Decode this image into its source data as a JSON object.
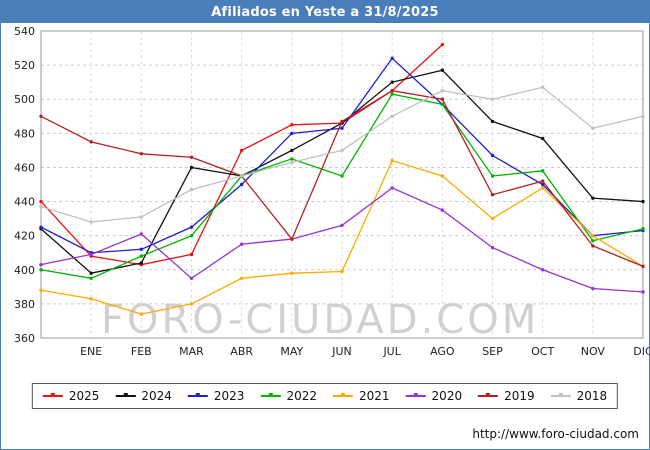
{
  "title": "Afiliados en Yeste a 31/8/2025",
  "watermark": "FORO-CIUDAD.COM",
  "footer_url": "http://www.foro-ciudad.com",
  "colors": {
    "title_bar": "#4a7ebb",
    "title_text": "#ffffff",
    "grid": "#cccccc",
    "axis_border": "#999999",
    "watermark": "#aaaaaa"
  },
  "chart_data": {
    "type": "line",
    "title": "Afiliados en Yeste a 31/8/2025",
    "x_labels": [
      "ENE",
      "FEB",
      "MAR",
      "ABR",
      "MAY",
      "JUN",
      "JUL",
      "AGO",
      "SEP",
      "OCT",
      "NOV",
      "DIC"
    ],
    "x0_note": "first value of each series is plotted at the left axis, before ENE",
    "ylim": [
      360,
      540
    ],
    "ytick_step": 20,
    "grid": true,
    "legend_position": "bottom",
    "series": [
      {
        "name": "2025",
        "color": "#ee1111",
        "values": [
          440,
          408,
          403,
          409,
          470,
          485,
          486,
          505,
          532
        ]
      },
      {
        "name": "2024",
        "color": "#111111",
        "values": [
          424,
          398,
          404,
          460,
          455,
          470,
          486,
          510,
          517,
          487,
          477,
          442,
          440
        ]
      },
      {
        "name": "2023",
        "color": "#2020cc",
        "values": [
          425,
          410,
          412,
          425,
          450,
          480,
          483,
          524,
          497,
          467,
          450,
          420,
          423
        ]
      },
      {
        "name": "2022",
        "color": "#00b400",
        "values": [
          400,
          395,
          408,
          420,
          455,
          465,
          455,
          503,
          497,
          455,
          458,
          417,
          424
        ]
      },
      {
        "name": "2021",
        "color": "#ffaa00",
        "values": [
          388,
          383,
          374,
          380,
          395,
          398,
          399,
          464,
          455,
          430,
          448,
          420,
          402
        ]
      },
      {
        "name": "2020",
        "color": "#9933cc",
        "values": [
          403,
          409,
          421,
          395,
          415,
          418,
          426,
          448,
          435,
          413,
          400,
          389,
          387
        ]
      },
      {
        "name": "2019",
        "color": "#b22222",
        "values": [
          490,
          475,
          468,
          466,
          455,
          418,
          487,
          505,
          500,
          444,
          452,
          414,
          402
        ]
      },
      {
        "name": "2018",
        "color": "#c0c0c0",
        "values": [
          437,
          428,
          431,
          447,
          455,
          463,
          470,
          490,
          505,
          500,
          507,
          483,
          490
        ]
      }
    ]
  }
}
